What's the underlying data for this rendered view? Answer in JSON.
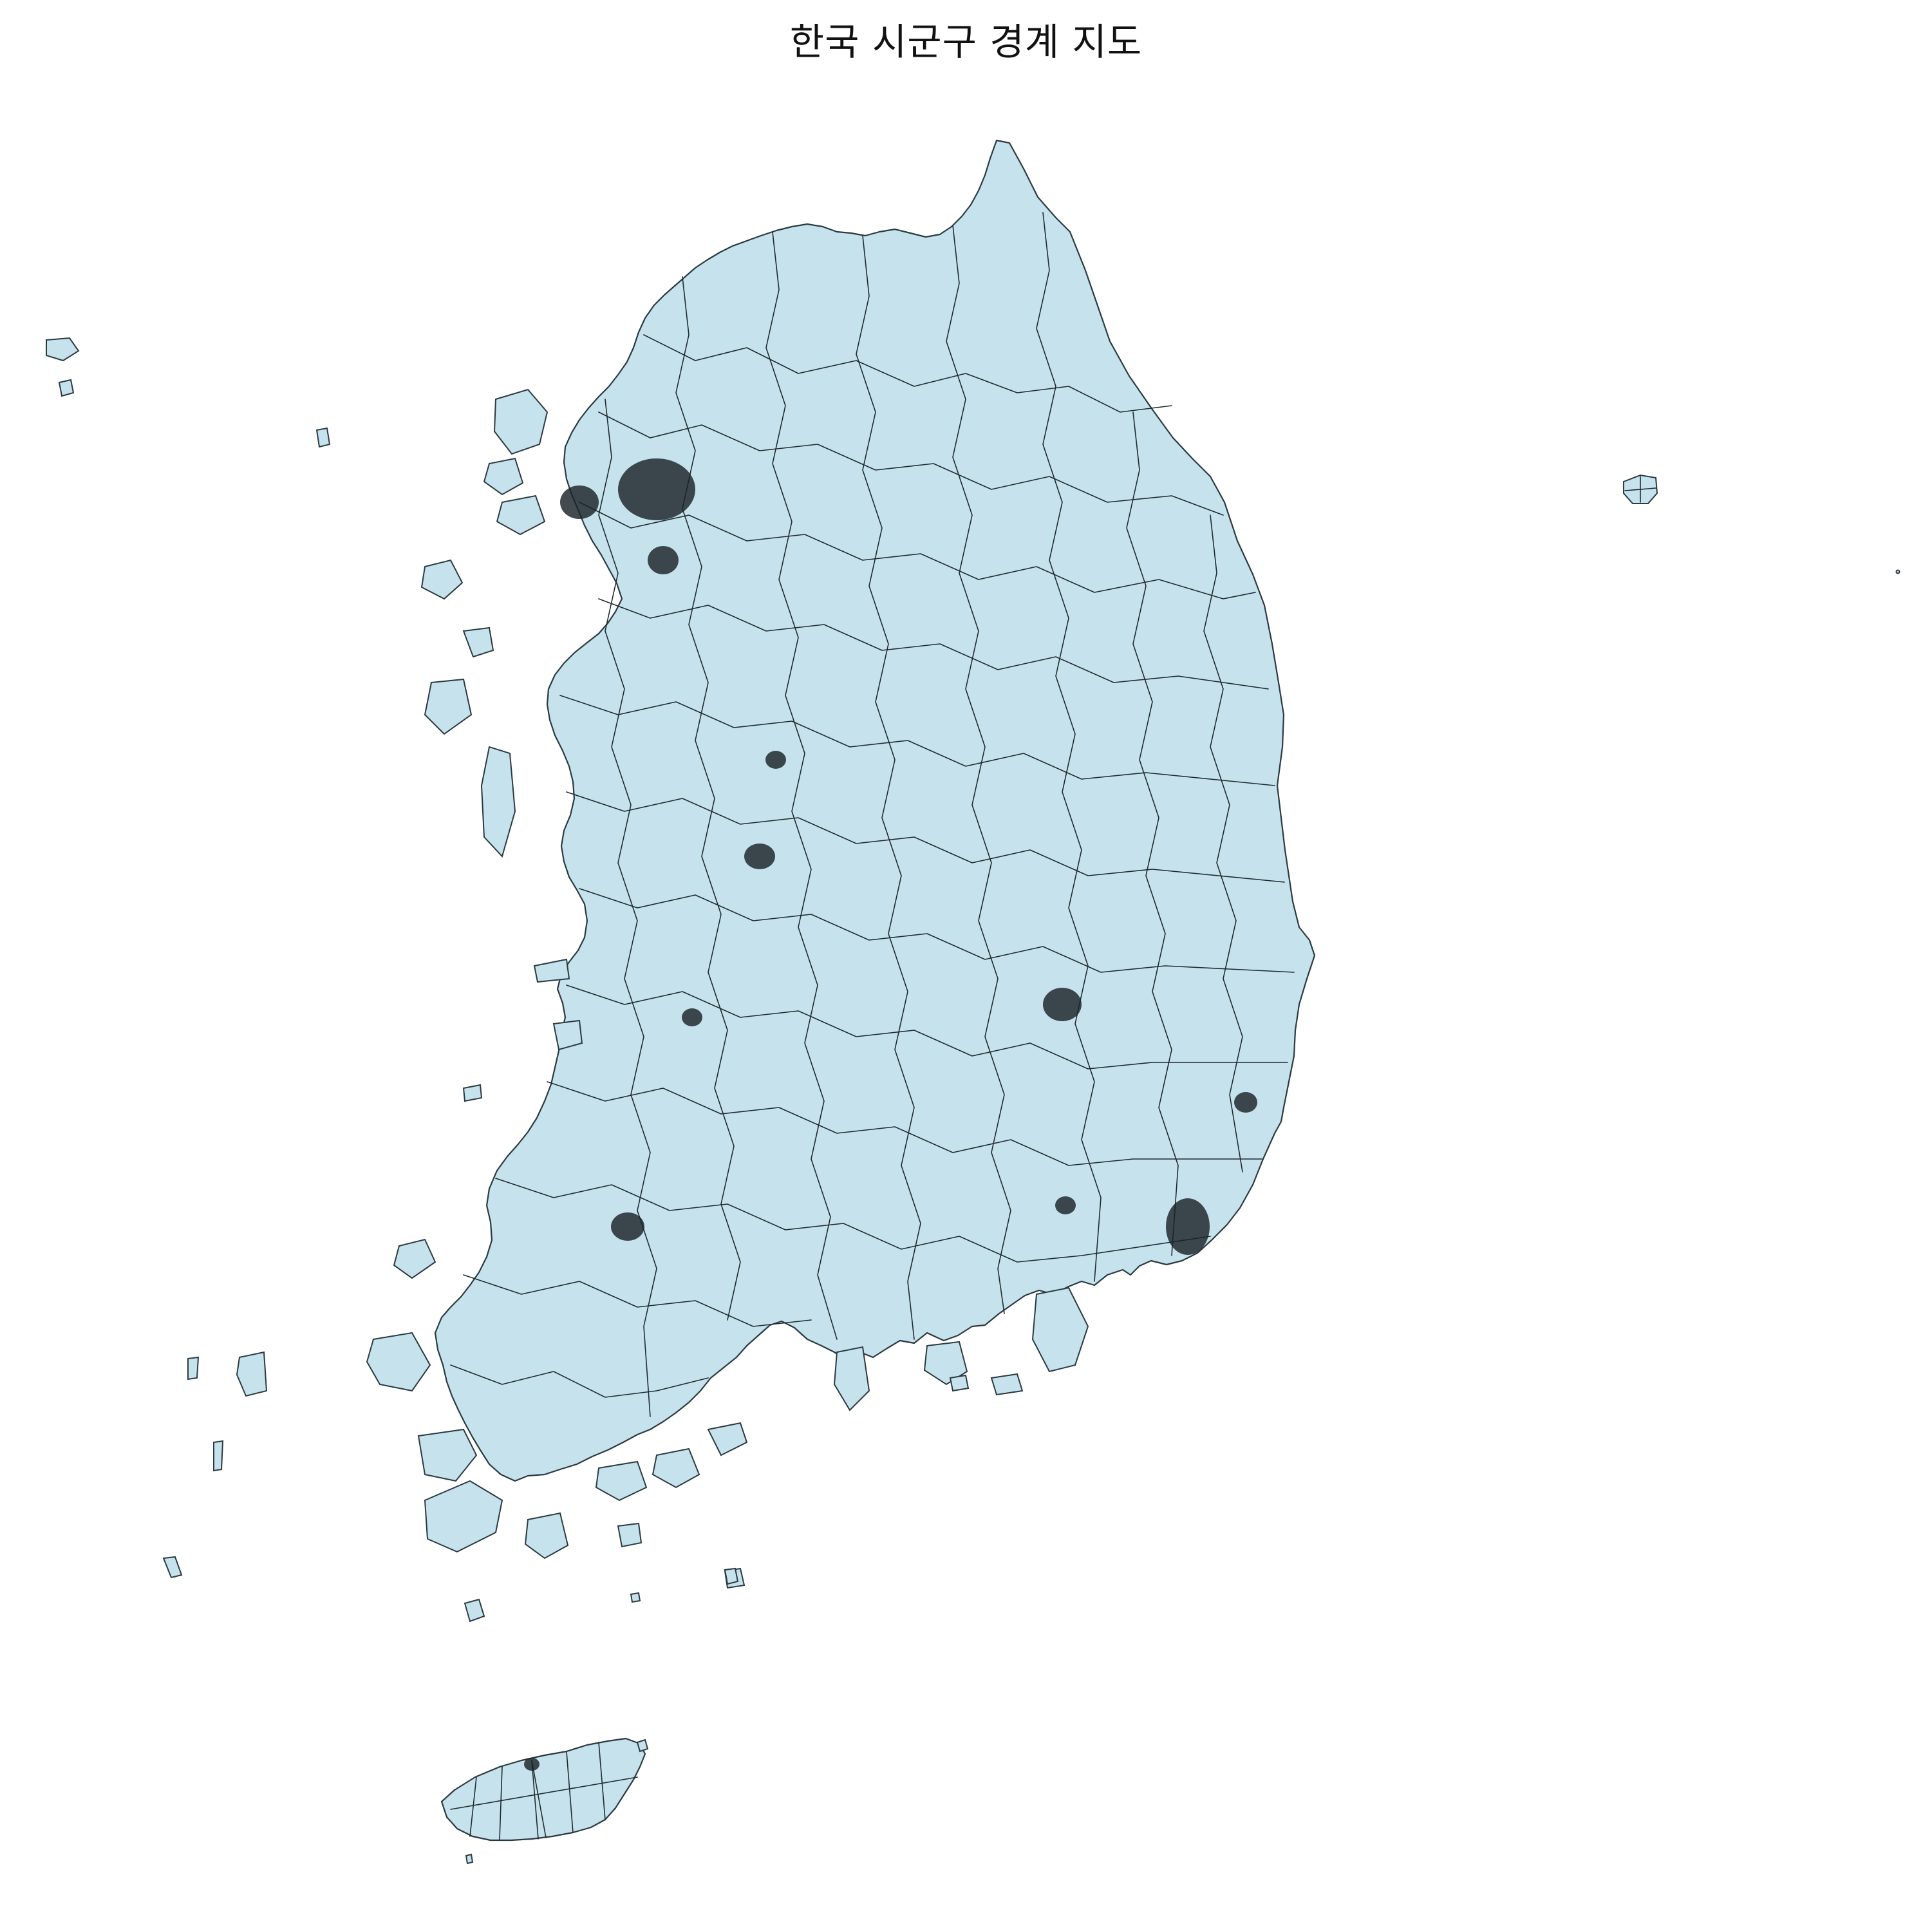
{
  "title": "한국 시군구 경계 지도",
  "colors": {
    "land_fill": "#c6e2ec",
    "boundary_stroke": "#2b3a40",
    "background": "#ffffff"
  },
  "map": {
    "regions": [
      "mainland",
      "jeju-island",
      "ulleung-island",
      "west-sea-islands",
      "south-sea-islands"
    ],
    "dense_urban_areas": [
      "seoul-metropolitan",
      "daejeon",
      "daegu",
      "gwangju",
      "busan",
      "ulsan",
      "cheongju",
      "jeonju"
    ]
  }
}
